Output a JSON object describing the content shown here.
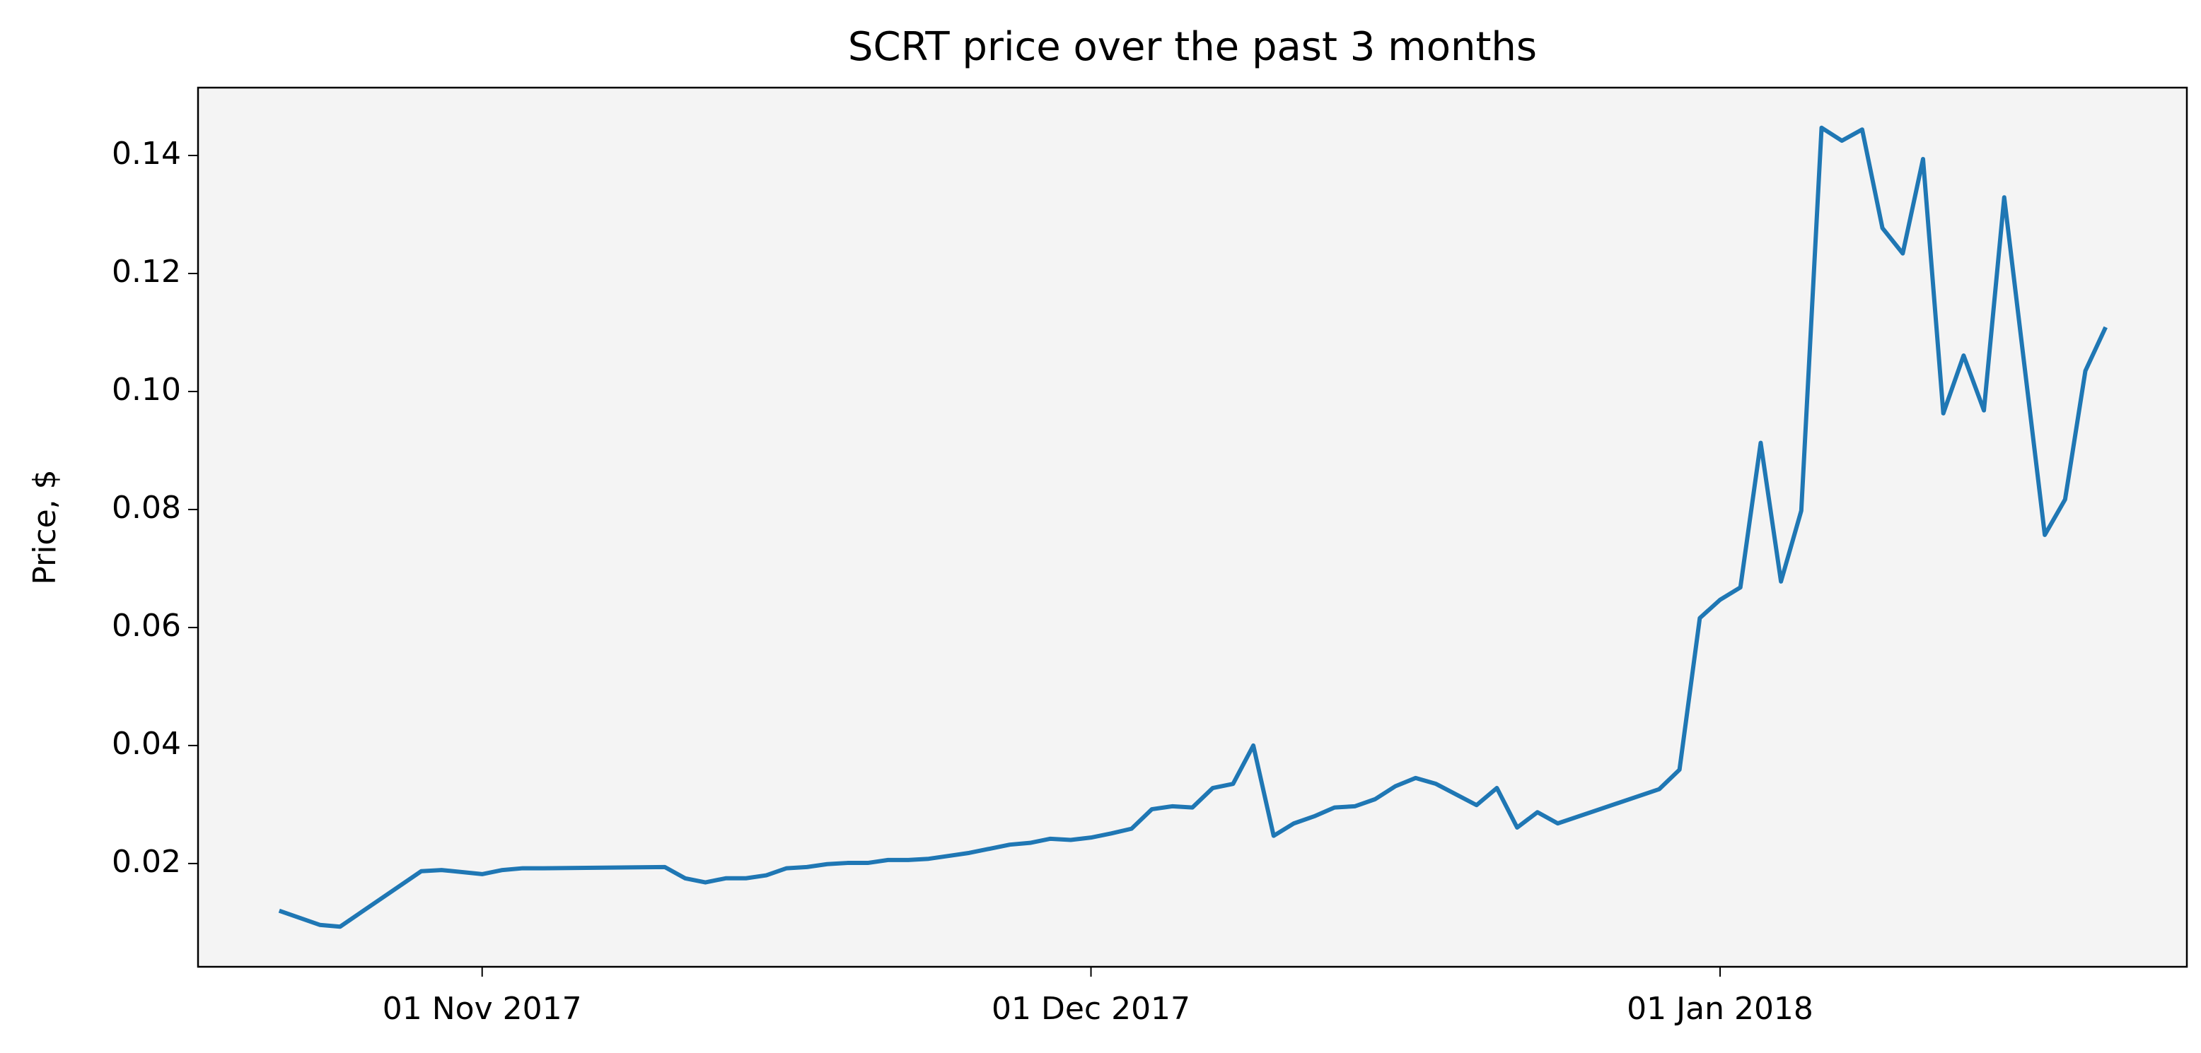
{
  "chart_data": {
    "type": "line",
    "title": "SCRT price over the past 3 months",
    "ylabel": "Price, $",
    "x": [
      "2017-10-22",
      "2017-10-23",
      "2017-10-24",
      "2017-10-25",
      "2017-10-29",
      "2017-10-30",
      "2017-11-01",
      "2017-11-02",
      "2017-11-03",
      "2017-11-04",
      "2017-11-10",
      "2017-11-11",
      "2017-11-12",
      "2017-11-13",
      "2017-11-14",
      "2017-11-15",
      "2017-11-16",
      "2017-11-17",
      "2017-11-18",
      "2017-11-19",
      "2017-11-20",
      "2017-11-21",
      "2017-11-22",
      "2017-11-23",
      "2017-11-24",
      "2017-11-25",
      "2017-11-26",
      "2017-11-27",
      "2017-11-28",
      "2017-11-29",
      "2017-11-30",
      "2017-12-01",
      "2017-12-02",
      "2017-12-03",
      "2017-12-04",
      "2017-12-05",
      "2017-12-06",
      "2017-12-07",
      "2017-12-08",
      "2017-12-09",
      "2017-12-10",
      "2017-12-11",
      "2017-12-12",
      "2017-12-13",
      "2017-12-14",
      "2017-12-15",
      "2017-12-16",
      "2017-12-17",
      "2017-12-18",
      "2017-12-20",
      "2017-12-21",
      "2017-12-22",
      "2017-12-23",
      "2017-12-24",
      "2017-12-29",
      "2017-12-30",
      "2017-12-31",
      "2018-01-01",
      "2018-01-02",
      "2018-01-03",
      "2018-01-04",
      "2018-01-05",
      "2018-01-06",
      "2018-01-07",
      "2018-01-08",
      "2018-01-09",
      "2018-01-10",
      "2018-01-11",
      "2018-01-12",
      "2018-01-13",
      "2018-01-14",
      "2018-01-15",
      "2018-01-17",
      "2018-01-18",
      "2018-01-19",
      "2018-01-20"
    ],
    "series": [
      {
        "color": "#1f77b4",
        "values": [
          0.012,
          0.0108,
          0.0096,
          0.0093,
          0.0187,
          0.0189,
          0.0182,
          0.0189,
          0.0192,
          0.0192,
          0.0194,
          0.0175,
          0.0168,
          0.0175,
          0.0175,
          0.018,
          0.0192,
          0.0194,
          0.0199,
          0.0201,
          0.0201,
          0.0206,
          0.0206,
          0.0208,
          0.0213,
          0.0218,
          0.0225,
          0.0232,
          0.0235,
          0.0242,
          0.024,
          0.0244,
          0.0251,
          0.0259,
          0.0292,
          0.0297,
          0.0295,
          0.0328,
          0.0335,
          0.04,
          0.0247,
          0.0268,
          0.028,
          0.0295,
          0.0297,
          0.0309,
          0.0331,
          0.0345,
          0.0335,
          0.0299,
          0.0328,
          0.0261,
          0.0287,
          0.0268,
          0.0326,
          0.0359,
          0.0616,
          0.0647,
          0.0668,
          0.0913,
          0.0678,
          0.0798,
          0.1447,
          0.1425,
          0.1444,
          0.1277,
          0.1234,
          0.1394,
          0.0963,
          0.1061,
          0.0968,
          0.1329,
          0.0757,
          0.0817,
          0.1035,
          0.1109
        ]
      }
    ],
    "xlim": [
      "2017-10-18",
      "2018-01-24"
    ],
    "xticks": [
      {
        "value": "2017-11-01",
        "label": "01 Nov 2017"
      },
      {
        "value": "2017-12-01",
        "label": "01 Dec 2017"
      },
      {
        "value": "2018-01-01",
        "label": "01 Jan 2018"
      }
    ],
    "ylim": [
      0.0025,
      0.1515
    ],
    "yticks": [
      0.02,
      0.04,
      0.06,
      0.08,
      {
        "value": 0.1,
        "label": "0.10"
      },
      0.12,
      0.14
    ],
    "background": "#f4f4f4"
  }
}
